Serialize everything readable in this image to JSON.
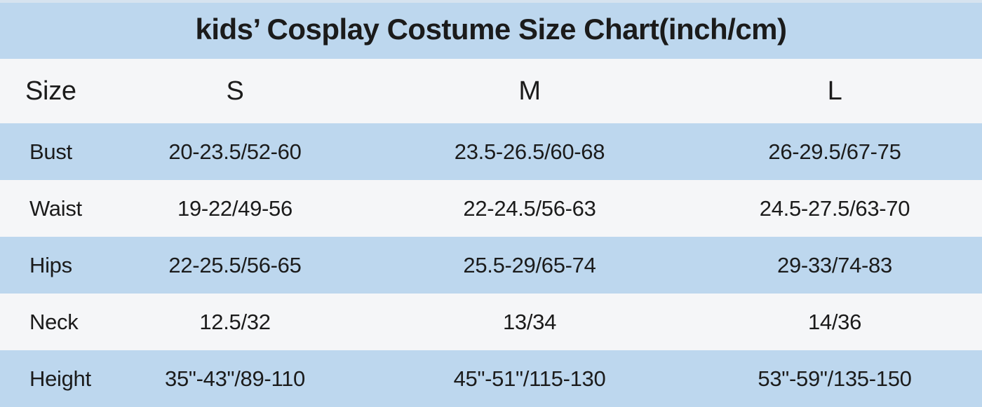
{
  "chart_data": {
    "type": "table",
    "title": "kids’ Cosplay Costume Size Chart(inch/cm)",
    "header": {
      "label": "Size",
      "columns": [
        "S",
        "M",
        "L"
      ]
    },
    "rows": [
      {
        "label": "Bust",
        "values": [
          "20-23.5/52-60",
          "23.5-26.5/60-68",
          "26-29.5/67-75"
        ]
      },
      {
        "label": "Waist",
        "values": [
          "19-22/49-56",
          "22-24.5/56-63",
          "24.5-27.5/63-70"
        ]
      },
      {
        "label": "Hips",
        "values": [
          "22-25.5/56-65",
          "25.5-29/65-74",
          "29-33/74-83"
        ]
      },
      {
        "label": "Neck",
        "values": [
          "12.5/32",
          "13/34",
          "14/36"
        ]
      },
      {
        "label": "Height",
        "values": [
          "35\"-43\"/89-110",
          "45\"-51\"/115-130",
          "53\"-59\"/135-150"
        ]
      }
    ]
  },
  "colors": {
    "row_blue": "#bdd7ee",
    "row_light": "#f5f6f8",
    "text": "#1b1b1b",
    "top_strip": "#d6e3ef"
  }
}
